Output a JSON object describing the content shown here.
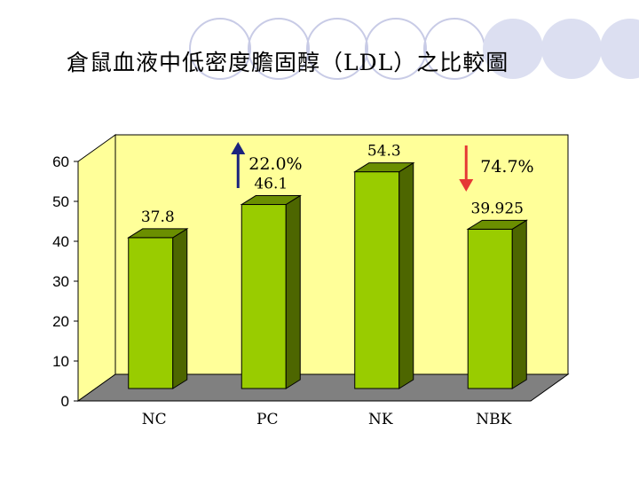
{
  "title": "倉鼠血液中低密度膽固醇（LDL）之比較圖",
  "chart_data": {
    "type": "bar",
    "categories": [
      "NC",
      "PC",
      "NK",
      "NBK"
    ],
    "values": [
      37.8,
      46.1,
      54.3,
      39.925
    ],
    "value_labels": [
      "37.8",
      "46.1",
      "54.3",
      "39.925"
    ],
    "ylim": [
      0,
      60
    ],
    "yticks": [
      0,
      10,
      20,
      30,
      40,
      50,
      60
    ],
    "ytick_labels": [
      "0",
      "10",
      "20",
      "30",
      "40",
      "50",
      "60"
    ],
    "xlabel": "",
    "ylabel": "",
    "grid": false,
    "bar_color": "#99cc00",
    "annotations": [
      {
        "text": "22.0%",
        "direction": "up",
        "near": "PC",
        "color": "#1a237e"
      },
      {
        "text": "74.7%",
        "direction": "down",
        "near": "NBK",
        "color": "#e53935"
      }
    ],
    "colors": {
      "wall": "#ffff99",
      "floor": "#808080",
      "bar_front": "#99cc00",
      "bar_side": "#4d6600",
      "bar_top": "#6b8f00"
    }
  }
}
